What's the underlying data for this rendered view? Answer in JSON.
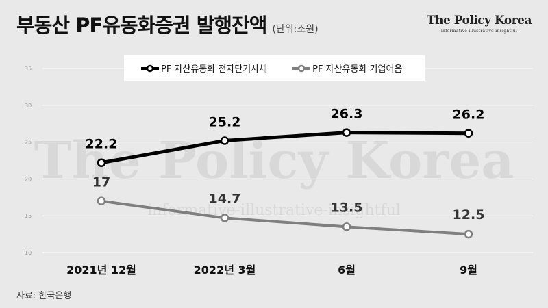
{
  "header": {
    "title": "부동산 PF유동화증권 발행잔액",
    "unit": "(단위:조원)",
    "brand_name": "The Policy Korea",
    "brand_tagline": "informative-illustrative-insightful"
  },
  "watermark": {
    "name": "The Policy Korea",
    "tagline": "informative-illustrative-insightful"
  },
  "source": "자료: 한국은행",
  "chart_data": {
    "type": "line",
    "categories": [
      "2021년 12월",
      "2022년 3월",
      "6월",
      "9월"
    ],
    "ylim": [
      10,
      35
    ],
    "yticks": [
      "10",
      "15",
      "20",
      "25",
      "30",
      "35"
    ],
    "grid": true,
    "legend_position": "top-center",
    "series": [
      {
        "name": "PF 자산유동화 전자단기사채",
        "values": [
          22.2,
          25.2,
          26.3,
          26.2
        ],
        "labels": [
          "22.2",
          "25.2",
          "26.3",
          "26.2"
        ],
        "color": "#000000"
      },
      {
        "name": "PF 자산유동화 기업어음",
        "values": [
          17,
          14.7,
          13.5,
          12.5
        ],
        "labels": [
          "17",
          "14.7",
          "13.5",
          "12.5"
        ],
        "color": "#7f7f7f"
      }
    ]
  }
}
